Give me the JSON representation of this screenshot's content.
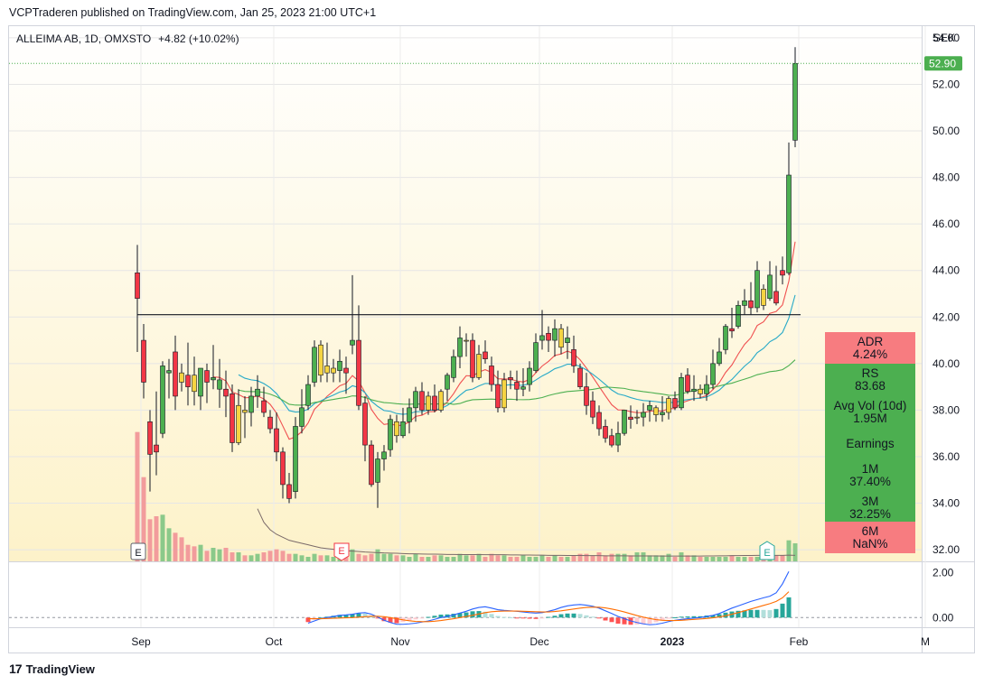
{
  "header": {
    "published_line": "VCPTraderen published on TradingView.com, Jan 25, 2023 21:00 UTC+1",
    "symbol_line": "ALLEIMA AB, 1D, OMXSTO",
    "change": "+4.82 (+10.02%)",
    "currency": "SEK"
  },
  "footer": {
    "brand": "TradingView",
    "mark": "17"
  },
  "stats_panel": {
    "adr_label": "ADR",
    "adr_value": "4.24%",
    "rs_label": "RS",
    "rs_value": "83.68",
    "avgvol_label": "Avg Vol (10d)",
    "avgvol_value": "1.95M",
    "earnings_label": "Earnings",
    "m1_label": "1M",
    "m1_value": "37.40%",
    "m3_label": "3M",
    "m3_value": "32.25%",
    "m6_label": "6M",
    "m6_value": "NaN%",
    "colors": {
      "red": "#f77c80",
      "green": "#4caf50"
    }
  },
  "earnings_markers": [
    "E",
    "E",
    "E"
  ],
  "chart_data": [
    {
      "type": "candlestick",
      "symbol": "ALLEIMA AB",
      "interval": "1D",
      "exchange": "OMXSTO",
      "currency": "SEK",
      "last_price": 52.9,
      "last_price_label": "52.90",
      "ylim": [
        31.5,
        54.5
      ],
      "y_ticks": [
        "54.00",
        "52.00",
        "50.00",
        "48.00",
        "46.00",
        "44.00",
        "42.00",
        "40.00",
        "38.00",
        "36.00",
        "34.00",
        "32.00"
      ],
      "x_ticks": [
        "Sep",
        "Oct",
        "Nov",
        "Dec",
        "2023",
        "Feb",
        "M"
      ],
      "horizontal_line": 42.1,
      "colors": {
        "up": "#4caf50",
        "down": "#f23645",
        "inside": "#f5d442",
        "wick": "#131722",
        "ema_fast": "#f05050",
        "ema_mid": "#26a9c8",
        "sma": "#4caf50",
        "volume_up": "#8bc98a",
        "volume_down": "#f29c9c"
      },
      "candles": [
        {
          "o": 43.9,
          "h": 45.1,
          "l": 40.5,
          "c": 42.8
        },
        {
          "o": 41.0,
          "h": 41.7,
          "l": 38.5,
          "c": 39.2
        },
        {
          "o": 37.5,
          "h": 38.0,
          "l": 34.5,
          "c": 36.1
        },
        {
          "o": 36.5,
          "h": 38.8,
          "l": 35.2,
          "c": 36.2
        },
        {
          "o": 37.0,
          "h": 40.1,
          "l": 36.8,
          "c": 39.9
        },
        {
          "o": 39.6,
          "h": 40.2,
          "l": 38.5,
          "c": 39.7
        },
        {
          "o": 40.5,
          "h": 41.2,
          "l": 38.0,
          "c": 38.6
        },
        {
          "o": 39.6,
          "h": 40.0,
          "l": 38.8,
          "c": 39.2
        },
        {
          "o": 39.5,
          "h": 40.9,
          "l": 38.2,
          "c": 39.0
        },
        {
          "o": 39.5,
          "h": 40.3,
          "l": 38.2,
          "c": 38.8
        },
        {
          "o": 38.6,
          "h": 39.8,
          "l": 38.0,
          "c": 39.8
        },
        {
          "o": 39.7,
          "h": 40.0,
          "l": 38.3,
          "c": 39.2
        },
        {
          "o": 39.3,
          "h": 40.8,
          "l": 38.9,
          "c": 39.4
        },
        {
          "o": 38.9,
          "h": 40.2,
          "l": 38.1,
          "c": 39.3
        },
        {
          "o": 38.9,
          "h": 39.7,
          "l": 37.7,
          "c": 38.6
        },
        {
          "o": 38.7,
          "h": 39.1,
          "l": 36.2,
          "c": 36.6
        },
        {
          "o": 36.6,
          "h": 38.9,
          "l": 36.5,
          "c": 38.2
        },
        {
          "o": 38.0,
          "h": 38.6,
          "l": 36.8,
          "c": 37.9
        },
        {
          "o": 37.9,
          "h": 39.0,
          "l": 37.3,
          "c": 38.6
        },
        {
          "o": 38.6,
          "h": 39.5,
          "l": 38.1,
          "c": 38.9
        },
        {
          "o": 38.4,
          "h": 39.0,
          "l": 37.7,
          "c": 37.9
        },
        {
          "o": 37.7,
          "h": 38.0,
          "l": 37.0,
          "c": 37.2
        },
        {
          "o": 37.2,
          "h": 37.9,
          "l": 35.8,
          "c": 36.2
        },
        {
          "o": 36.2,
          "h": 36.4,
          "l": 34.2,
          "c": 34.8
        },
        {
          "o": 34.8,
          "h": 35.3,
          "l": 34.0,
          "c": 34.2
        },
        {
          "o": 34.5,
          "h": 37.7,
          "l": 34.2,
          "c": 37.3
        },
        {
          "o": 37.3,
          "h": 38.9,
          "l": 37.0,
          "c": 38.1
        },
        {
          "o": 38.2,
          "h": 39.5,
          "l": 38.0,
          "c": 39.1
        },
        {
          "o": 39.2,
          "h": 41.0,
          "l": 39.0,
          "c": 40.7
        },
        {
          "o": 40.8,
          "h": 41.0,
          "l": 39.2,
          "c": 39.5
        },
        {
          "o": 39.6,
          "h": 40.9,
          "l": 39.2,
          "c": 39.9
        },
        {
          "o": 39.6,
          "h": 40.2,
          "l": 39.2,
          "c": 39.8
        },
        {
          "o": 39.7,
          "h": 40.6,
          "l": 39.2,
          "c": 40.1
        },
        {
          "o": 39.8,
          "h": 40.3,
          "l": 38.7,
          "c": 39.6
        },
        {
          "o": 40.8,
          "h": 43.8,
          "l": 40.4,
          "c": 41.0
        },
        {
          "o": 41.0,
          "h": 42.5,
          "l": 38.0,
          "c": 38.2
        },
        {
          "o": 38.3,
          "h": 38.6,
          "l": 35.8,
          "c": 36.5
        },
        {
          "o": 36.5,
          "h": 36.7,
          "l": 34.7,
          "c": 34.8
        },
        {
          "o": 34.9,
          "h": 36.2,
          "l": 33.8,
          "c": 35.9
        },
        {
          "o": 35.9,
          "h": 36.5,
          "l": 35.4,
          "c": 36.2
        },
        {
          "o": 36.3,
          "h": 37.8,
          "l": 36.0,
          "c": 37.6
        },
        {
          "o": 37.5,
          "h": 37.8,
          "l": 36.6,
          "c": 36.9
        },
        {
          "o": 36.9,
          "h": 38.1,
          "l": 36.8,
          "c": 37.5
        },
        {
          "o": 37.5,
          "h": 38.5,
          "l": 37.0,
          "c": 38.1
        },
        {
          "o": 38.1,
          "h": 39.0,
          "l": 37.5,
          "c": 38.8
        },
        {
          "o": 38.8,
          "h": 39.2,
          "l": 37.8,
          "c": 38.0
        },
        {
          "o": 38.0,
          "h": 38.8,
          "l": 37.8,
          "c": 38.6
        },
        {
          "o": 38.6,
          "h": 39.1,
          "l": 37.9,
          "c": 38.0
        },
        {
          "o": 38.0,
          "h": 38.9,
          "l": 37.9,
          "c": 38.8
        },
        {
          "o": 38.9,
          "h": 39.6,
          "l": 38.4,
          "c": 39.5
        },
        {
          "o": 39.4,
          "h": 40.6,
          "l": 39.2,
          "c": 40.3
        },
        {
          "o": 40.3,
          "h": 41.6,
          "l": 39.8,
          "c": 41.1
        },
        {
          "o": 41.0,
          "h": 41.3,
          "l": 40.3,
          "c": 41.0
        },
        {
          "o": 41.0,
          "h": 41.3,
          "l": 39.2,
          "c": 39.4
        },
        {
          "o": 39.4,
          "h": 40.8,
          "l": 39.3,
          "c": 40.4
        },
        {
          "o": 40.5,
          "h": 41.0,
          "l": 40.0,
          "c": 40.2
        },
        {
          "o": 39.9,
          "h": 40.3,
          "l": 38.8,
          "c": 39.1
        },
        {
          "o": 39.1,
          "h": 39.7,
          "l": 37.9,
          "c": 38.1
        },
        {
          "o": 38.1,
          "h": 39.6,
          "l": 37.9,
          "c": 39.3
        },
        {
          "o": 39.4,
          "h": 39.7,
          "l": 38.9,
          "c": 39.3
        },
        {
          "o": 39.2,
          "h": 39.7,
          "l": 38.4,
          "c": 38.9
        },
        {
          "o": 38.9,
          "h": 39.8,
          "l": 38.6,
          "c": 39.0
        },
        {
          "o": 39.1,
          "h": 40.1,
          "l": 38.8,
          "c": 39.8
        },
        {
          "o": 39.7,
          "h": 41.3,
          "l": 39.6,
          "c": 40.9
        },
        {
          "o": 41.0,
          "h": 42.3,
          "l": 40.6,
          "c": 41.2
        },
        {
          "o": 41.3,
          "h": 41.6,
          "l": 40.5,
          "c": 41.0
        },
        {
          "o": 41.0,
          "h": 41.9,
          "l": 40.3,
          "c": 41.5
        },
        {
          "o": 41.5,
          "h": 41.7,
          "l": 40.4,
          "c": 40.7
        },
        {
          "o": 40.9,
          "h": 41.6,
          "l": 40.2,
          "c": 41.1
        },
        {
          "o": 40.6,
          "h": 41.2,
          "l": 39.6,
          "c": 39.9
        },
        {
          "o": 39.8,
          "h": 40.0,
          "l": 38.9,
          "c": 39.0
        },
        {
          "o": 39.0,
          "h": 39.6,
          "l": 37.8,
          "c": 38.2
        },
        {
          "o": 38.4,
          "h": 38.8,
          "l": 37.4,
          "c": 37.7
        },
        {
          "o": 37.9,
          "h": 38.2,
          "l": 36.9,
          "c": 37.2
        },
        {
          "o": 37.3,
          "h": 37.6,
          "l": 36.6,
          "c": 36.8
        },
        {
          "o": 36.9,
          "h": 37.2,
          "l": 36.4,
          "c": 36.5
        },
        {
          "o": 36.5,
          "h": 37.5,
          "l": 36.2,
          "c": 37.0
        },
        {
          "o": 37.0,
          "h": 38.0,
          "l": 36.9,
          "c": 38.0
        },
        {
          "o": 37.7,
          "h": 38.2,
          "l": 37.2,
          "c": 37.6
        },
        {
          "o": 37.7,
          "h": 38.0,
          "l": 37.4,
          "c": 37.7
        },
        {
          "o": 37.7,
          "h": 38.3,
          "l": 37.3,
          "c": 37.9
        },
        {
          "o": 38.0,
          "h": 38.4,
          "l": 37.5,
          "c": 38.2
        },
        {
          "o": 37.8,
          "h": 38.2,
          "l": 37.5,
          "c": 38.1
        },
        {
          "o": 37.8,
          "h": 38.6,
          "l": 37.5,
          "c": 37.9
        },
        {
          "o": 37.9,
          "h": 38.6,
          "l": 37.6,
          "c": 38.5
        },
        {
          "o": 38.5,
          "h": 38.8,
          "l": 38.0,
          "c": 38.1
        },
        {
          "o": 38.1,
          "h": 39.6,
          "l": 38.0,
          "c": 39.4
        },
        {
          "o": 39.5,
          "h": 39.8,
          "l": 38.7,
          "c": 38.8
        },
        {
          "o": 38.8,
          "h": 39.5,
          "l": 38.4,
          "c": 38.9
        },
        {
          "o": 38.9,
          "h": 39.1,
          "l": 38.5,
          "c": 38.7
        },
        {
          "o": 38.7,
          "h": 39.5,
          "l": 38.4,
          "c": 39.1
        },
        {
          "o": 39.1,
          "h": 40.6,
          "l": 38.9,
          "c": 40.0
        },
        {
          "o": 40.0,
          "h": 41.1,
          "l": 39.9,
          "c": 40.5
        },
        {
          "o": 40.6,
          "h": 41.7,
          "l": 40.4,
          "c": 41.6
        },
        {
          "o": 41.5,
          "h": 42.4,
          "l": 41.1,
          "c": 41.4
        },
        {
          "o": 41.6,
          "h": 42.7,
          "l": 41.5,
          "c": 42.5
        },
        {
          "o": 42.5,
          "h": 43.2,
          "l": 42.1,
          "c": 42.7
        },
        {
          "o": 42.7,
          "h": 43.5,
          "l": 42.1,
          "c": 42.4
        },
        {
          "o": 42.4,
          "h": 44.4,
          "l": 42.2,
          "c": 44.0
        },
        {
          "o": 43.2,
          "h": 43.4,
          "l": 42.3,
          "c": 42.5
        },
        {
          "o": 42.8,
          "h": 44.4,
          "l": 42.7,
          "c": 43.8
        },
        {
          "o": 43.1,
          "h": 44.2,
          "l": 42.5,
          "c": 42.6
        },
        {
          "o": 44.0,
          "h": 44.6,
          "l": 43.4,
          "c": 43.8
        },
        {
          "o": 43.9,
          "h": 49.5,
          "l": 43.8,
          "c": 48.1
        },
        {
          "o": 49.6,
          "h": 53.6,
          "l": 49.3,
          "c": 52.9
        }
      ],
      "volume": [
        8.6,
        5.6,
        2.8,
        3.0,
        3.1,
        2.2,
        1.9,
        1.6,
        1.1,
        1.0,
        1.1,
        0.7,
        0.9,
        0.8,
        0.9,
        0.6,
        0.6,
        0.4,
        0.4,
        0.5,
        0.6,
        0.7,
        0.8,
        0.7,
        0.5,
        0.5,
        0.4,
        0.3,
        0.5,
        0.4,
        0.4,
        0.3,
        0.3,
        0.5,
        0.8,
        0.5,
        0.4,
        0.5,
        0.8,
        0.5,
        0.5,
        0.4,
        0.4,
        0.3,
        0.5,
        0.3,
        0.3,
        0.4,
        0.4,
        0.3,
        0.3,
        0.5,
        0.4,
        0.4,
        0.5,
        0.3,
        0.5,
        0.4,
        0.4,
        0.3,
        0.3,
        0.4,
        0.3,
        0.3,
        0.4,
        0.3,
        0.4,
        0.3,
        0.3,
        0.4,
        0.5,
        0.5,
        0.4,
        0.6,
        0.4,
        0.5,
        0.5,
        0.5,
        0.4,
        0.6,
        0.6,
        0.4,
        0.4,
        0.4,
        0.5,
        0.3,
        0.6,
        0.4,
        0.4,
        0.3,
        0.3,
        0.3,
        0.3,
        0.3,
        0.4,
        0.3,
        0.3,
        0.3,
        0.3,
        0.3,
        0.3,
        0.4,
        0.4,
        1.4,
        1.2
      ],
      "volume_avg_line": [
        3.5,
        2.6,
        2.1,
        1.8,
        1.6,
        1.4,
        1.3,
        1.2,
        1.1,
        1.0,
        0.9,
        0.85,
        0.8,
        0.75,
        0.7,
        0.68,
        0.65,
        0.62,
        0.6,
        0.58,
        0.56,
        0.55,
        0.54,
        0.52,
        0.5,
        0.5,
        0.49,
        0.48,
        0.48,
        0.47,
        0.46,
        0.46,
        0.45,
        0.45,
        0.45,
        0.45,
        0.44,
        0.44,
        0.44,
        0.44,
        0.43,
        0.43,
        0.42,
        0.42,
        0.41,
        0.41,
        0.4,
        0.4,
        0.4,
        0.39,
        0.39,
        0.39,
        0.38,
        0.38,
        0.38,
        0.37,
        0.37,
        0.37,
        0.37,
        0.36,
        0.36,
        0.36,
        0.36,
        0.36,
        0.35,
        0.35,
        0.35,
        0.35,
        0.35,
        0.35,
        0.35,
        0.36,
        0.36,
        0.37,
        0.37,
        0.38,
        0.38,
        0.39,
        0.39,
        0.4,
        0.4,
        0.4,
        0.4,
        0.4,
        0.41,
        0.4,
        0.4,
        0.4,
        0.4,
        0.39,
        0.38,
        0.37,
        0.36,
        0.35,
        0.35,
        0.34,
        0.34,
        0.34,
        0.34,
        0.34,
        0.34,
        0.34,
        0.35,
        0.37,
        0.4
      ]
    },
    {
      "type": "line",
      "name": "MACD",
      "y_ticks": [
        "2.00",
        "0.00"
      ],
      "ylim": [
        -0.35,
        2.3
      ],
      "macd_start_index": 27,
      "macd": [
        -0.25,
        -0.15,
        -0.05,
        0.0,
        0.05,
        0.1,
        0.12,
        0.15,
        0.2,
        0.22,
        0.15,
        0.02,
        -0.12,
        -0.22,
        -0.3,
        -0.3,
        -0.28,
        -0.25,
        -0.2,
        -0.15,
        -0.08,
        0.0,
        0.05,
        0.12,
        0.2,
        0.28,
        0.38,
        0.45,
        0.48,
        0.42,
        0.35,
        0.32,
        0.3,
        0.28,
        0.25,
        0.22,
        0.2,
        0.22,
        0.28,
        0.35,
        0.45,
        0.52,
        0.56,
        0.58,
        0.55,
        0.5,
        0.42,
        0.3,
        0.18,
        0.05,
        -0.05,
        -0.15,
        -0.22,
        -0.28,
        -0.32,
        -0.3,
        -0.25,
        -0.18,
        -0.12,
        -0.08,
        -0.05,
        -0.02,
        0.0,
        0.05,
        0.1,
        0.18,
        0.3,
        0.42,
        0.52,
        0.62,
        0.72,
        0.8,
        0.88,
        0.95,
        1.1,
        1.5,
        2.05
      ],
      "signal": [
        -0.05,
        -0.05,
        -0.05,
        -0.04,
        -0.03,
        -0.02,
        -0.01,
        0.0,
        0.02,
        0.04,
        0.06,
        0.06,
        0.04,
        0.0,
        -0.05,
        -0.1,
        -0.14,
        -0.17,
        -0.18,
        -0.18,
        -0.16,
        -0.13,
        -0.09,
        -0.05,
        0.0,
        0.05,
        0.1,
        0.16,
        0.22,
        0.26,
        0.28,
        0.29,
        0.29,
        0.29,
        0.28,
        0.27,
        0.26,
        0.25,
        0.25,
        0.27,
        0.3,
        0.34,
        0.38,
        0.42,
        0.45,
        0.46,
        0.46,
        0.43,
        0.38,
        0.32,
        0.25,
        0.17,
        0.09,
        0.02,
        -0.04,
        -0.09,
        -0.12,
        -0.13,
        -0.13,
        -0.12,
        -0.1,
        -0.08,
        -0.06,
        -0.04,
        -0.01,
        0.03,
        0.08,
        0.15,
        0.22,
        0.3,
        0.38,
        0.46,
        0.54,
        0.62,
        0.72,
        0.88,
        1.15
      ]
    }
  ]
}
